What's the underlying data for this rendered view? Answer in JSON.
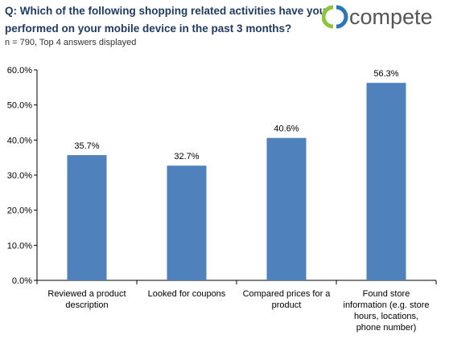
{
  "header": {
    "question": "Q: Which of the following shopping related activities have you performed on your mobile device in the past 3 months?",
    "note": "n = 790, Top 4 answers displayed",
    "logo_text": "compete"
  },
  "colors": {
    "bar": "#4f81bd",
    "title": "#1f3a5f",
    "logo_green": "#8cc63f",
    "logo_blue": "#2a76b8",
    "logo_text": "#555555"
  },
  "chart_data": {
    "type": "bar",
    "categories": [
      [
        "Reviewed a product",
        "description"
      ],
      [
        "Looked for coupons"
      ],
      [
        "Compared prices for a",
        "product"
      ],
      [
        "Found store",
        "information (e.g. store",
        "hours, locations,",
        "phone number)"
      ]
    ],
    "values": [
      35.7,
      32.7,
      40.6,
      56.3
    ],
    "value_labels": [
      "35.7%",
      "32.7%",
      "40.6%",
      "56.3%"
    ],
    "yticks": [
      "0.0%",
      "10.0%",
      "20.0%",
      "30.0%",
      "40.0%",
      "50.0%",
      "60.0%"
    ],
    "ylim": [
      0,
      60
    ],
    "grid": false,
    "legend": "none"
  }
}
